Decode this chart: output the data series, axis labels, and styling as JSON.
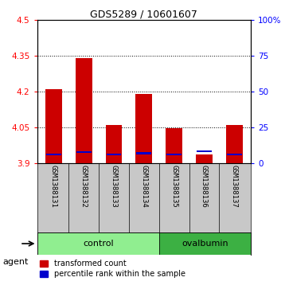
{
  "title": "GDS5289 / 10601607",
  "samples": [
    "GSM1388131",
    "GSM1388132",
    "GSM1388133",
    "GSM1388134",
    "GSM1388135",
    "GSM1388136",
    "GSM1388137"
  ],
  "red_values": [
    4.21,
    4.34,
    4.06,
    4.19,
    4.045,
    3.935,
    4.06
  ],
  "blue_values": [
    3.935,
    3.945,
    3.935,
    3.94,
    3.935,
    3.948,
    3.935
  ],
  "ylim_left": [
    3.9,
    4.5
  ],
  "ylim_right": [
    0,
    100
  ],
  "yticks_left": [
    3.9,
    4.05,
    4.2,
    4.35,
    4.5
  ],
  "yticks_right": [
    0,
    25,
    50,
    75,
    100
  ],
  "ytick_labels_left": [
    "3.9",
    "4.05",
    "4.2",
    "4.35",
    "4.5"
  ],
  "ytick_labels_right": [
    "0",
    "25",
    "50",
    "75",
    "100%"
  ],
  "bar_width": 0.55,
  "red_color": "#CC0000",
  "blue_color": "#0000CC",
  "base_value": 3.9,
  "control_color": "#90EE90",
  "ovalbumin_color": "#3CB043",
  "label_bg_color": "#C8C8C8",
  "legend_items": [
    {
      "label": "transformed count",
      "color": "#CC0000"
    },
    {
      "label": "percentile rank within the sample",
      "color": "#0000CC"
    }
  ]
}
